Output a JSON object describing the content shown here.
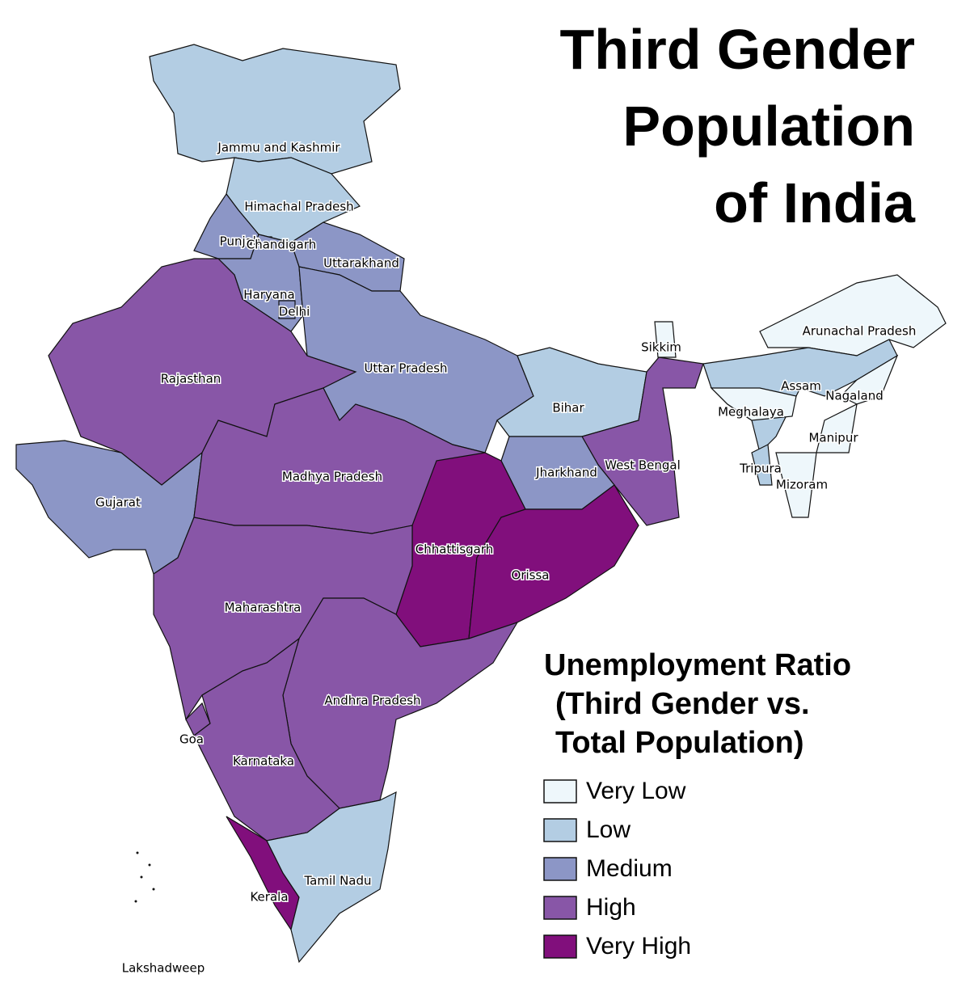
{
  "title": [
    "Third Gender",
    "Population",
    "of India"
  ],
  "legend": {
    "title": [
      "Unemployment Ratio",
      "(Third Gender vs.",
      "Total Population)"
    ],
    "items": [
      {
        "label": "Very Low",
        "color": "#eef7fb"
      },
      {
        "label": "Low",
        "color": "#b3cde3"
      },
      {
        "label": "Medium",
        "color": "#8c96c6"
      },
      {
        "label": "High",
        "color": "#8856a7"
      },
      {
        "label": "Very High",
        "color": "#810f7c"
      }
    ]
  },
  "regions": [
    {
      "name": "Jammu and Kashmir",
      "level": 1
    },
    {
      "name": "Himachal Pradesh",
      "level": 1
    },
    {
      "name": "Punjab",
      "level": 2
    },
    {
      "name": "Chandigarh",
      "level": 1
    },
    {
      "name": "Uttarakhand",
      "level": 2
    },
    {
      "name": "Haryana",
      "level": 2
    },
    {
      "name": "Delhi",
      "level": 2
    },
    {
      "name": "Rajasthan",
      "level": 3
    },
    {
      "name": "Uttar Pradesh",
      "level": 2
    },
    {
      "name": "Bihar",
      "level": 1
    },
    {
      "name": "Sikkim",
      "level": 0
    },
    {
      "name": "West Bengal",
      "level": 3
    },
    {
      "name": "Jharkhand",
      "level": 2
    },
    {
      "name": "Arunachal Pradesh",
      "level": 0
    },
    {
      "name": "Assam",
      "level": 1
    },
    {
      "name": "Meghalaya",
      "level": 0
    },
    {
      "name": "Nagaland",
      "level": 0
    },
    {
      "name": "Manipur",
      "level": 0
    },
    {
      "name": "Tripura",
      "level": 1
    },
    {
      "name": "Mizoram",
      "level": 0
    },
    {
      "name": "Gujarat",
      "level": 2
    },
    {
      "name": "Madhya Pradesh",
      "level": 3
    },
    {
      "name": "Chhattisgarh",
      "level": 4
    },
    {
      "name": "Orissa",
      "level": 4
    },
    {
      "name": "Maharashtra",
      "level": 3
    },
    {
      "name": "Goa",
      "level": 3
    },
    {
      "name": "Andhra Pradesh",
      "level": 3
    },
    {
      "name": "Karnataka",
      "level": 3
    },
    {
      "name": "Kerala",
      "level": 4
    },
    {
      "name": "Tamil Nadu",
      "level": 1
    },
    {
      "name": "Lakshadweep"
    }
  ]
}
